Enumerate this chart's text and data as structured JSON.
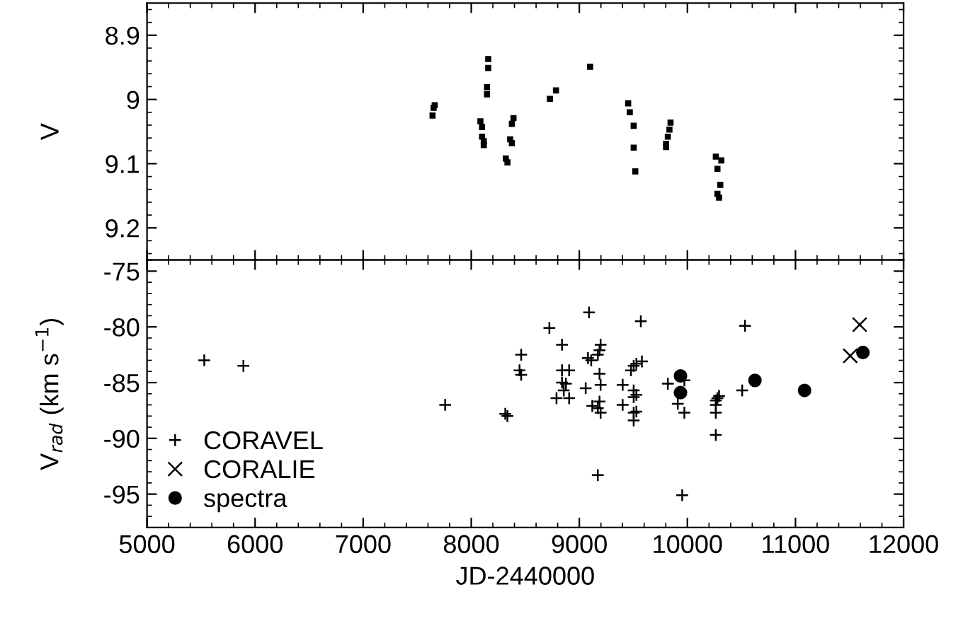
{
  "chart_data": [
    {
      "type": "scatter",
      "ylabel": "V",
      "marker": "square",
      "xlim": [
        5000,
        12000
      ],
      "xticks": [
        5000,
        6000,
        7000,
        8000,
        9000,
        10000,
        11000,
        12000
      ],
      "ylim": [
        9.25,
        8.85
      ],
      "yticks": [
        8.9,
        9,
        9.1,
        9.2
      ],
      "tick_labels": "y",
      "grid": false,
      "legend": false,
      "series": [
        {
          "color": "#000000",
          "x": [
            7652,
            7662,
            7642,
            8157,
            8157,
            8146,
            8146,
            8085,
            8100,
            8100,
            8116,
            8116,
            8320,
            8335,
            8391,
            8376,
            8360,
            8376,
            8728,
            8784,
            9100,
            9452,
            9467,
            9503,
            9503,
            9518,
            9844,
            9834,
            9819,
            9803,
            9803,
            10263,
            10314,
            10278,
            10304,
            10278,
            10293
          ],
          "values": [
            9.013,
            9.009,
            9.025,
            8.937,
            8.951,
            8.981,
            8.992,
            9.034,
            9.043,
            9.058,
            9.065,
            9.071,
            9.092,
            9.098,
            9.029,
            9.038,
            9.062,
            9.068,
            8.999,
            8.986,
            8.949,
            9.006,
            9.02,
            9.041,
            9.075,
            9.112,
            9.036,
            9.047,
            9.058,
            9.069,
            9.074,
            9.089,
            9.095,
            9.108,
            9.133,
            9.147,
            9.153
          ]
        }
      ]
    },
    {
      "type": "scatter",
      "xlabel": "JD-2440000",
      "ylabel": "V$_{rad}$ (km s$^{−1}$)",
      "xlim": [
        5000,
        12000
      ],
      "xticks": [
        5000,
        6000,
        7000,
        8000,
        9000,
        10000,
        11000,
        12000
      ],
      "ylim": [
        -98,
        -74
      ],
      "yticks": [
        -95,
        -90,
        -85,
        -80,
        -75
      ],
      "grid": false,
      "legend": "bottom left",
      "series": [
        {
          "name": "CORAVEL",
          "marker": "cross",
          "color": "#000000",
          "x": [
            8723,
            9090,
            9569,
            10533,
            5530,
            5892,
            7759,
            8315,
            8335,
            8462,
            8447,
            8462,
            8840,
            8840,
            8906,
            8840,
            8876,
            8789,
            8906,
            8856,
            9059,
            9080,
            9110,
            9120,
            9171,
            9197,
            9187,
            9171,
            9187,
            9197,
            9187,
            9197,
            9171,
            9401,
            9401,
            9478,
            9503,
            9528,
            9579,
            9503,
            9528,
            9503,
            9503,
            9528,
            9503,
            9819,
            9911,
            9972,
            9972,
            9952,
            10263,
            10278,
            10293,
            10263,
            10263,
            10263,
            10507
          ],
          "values": [
            -80.1,
            -78.7,
            -79.5,
            -79.9,
            -83.0,
            -83.5,
            -87.0,
            -87.8,
            -88.0,
            -82.5,
            -83.9,
            -84.3,
            -81.6,
            -83.9,
            -83.9,
            -85.0,
            -85.1,
            -86.4,
            -86.4,
            -85.7,
            -85.5,
            -82.8,
            -83.0,
            -87.1,
            -87.3,
            -81.6,
            -82.1,
            -82.5,
            -84.2,
            -85.2,
            -86.7,
            -87.7,
            -93.3,
            -85.2,
            -87.0,
            -83.9,
            -83.5,
            -83.3,
            -83.1,
            -85.7,
            -86.1,
            -86.3,
            -87.7,
            -87.6,
            -88.4,
            -85.1,
            -86.9,
            -87.7,
            -84.8,
            -95.1,
            -86.6,
            -86.4,
            -86.2,
            -87.7,
            -89.7,
            -87.0,
            -85.7
          ]
        },
        {
          "name": "CORALIE",
          "marker": "x",
          "color": "#000000",
          "x": [
            11507,
            11594
          ],
          "values": [
            -82.6,
            -79.8
          ]
        },
        {
          "name": "spectra",
          "marker": "circle",
          "color": "#000000",
          "x": [
            9936,
            9936,
            10625,
            11084,
            11624
          ],
          "values": [
            -84.4,
            -85.9,
            -84.8,
            -85.7,
            -82.3
          ]
        }
      ]
    }
  ]
}
